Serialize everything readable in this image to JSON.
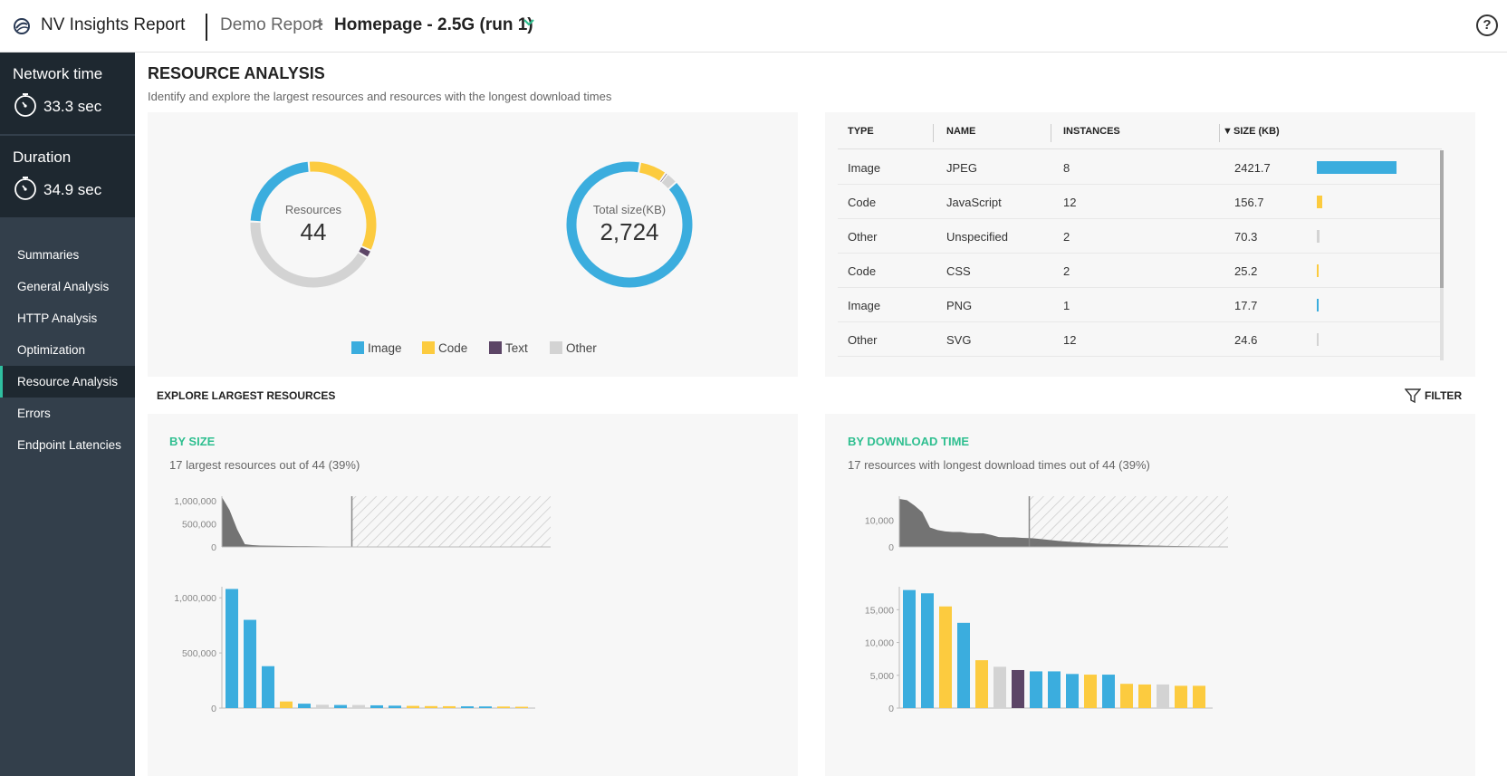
{
  "header": {
    "app_title": "NV Insights Report",
    "breadcrumb_parent": "Demo Report",
    "breadcrumb_separator": ">",
    "breadcrumb_current": "Homepage - 2.5G (run 1)",
    "help_label": "?"
  },
  "sidebar": {
    "network_time": {
      "label": "Network time",
      "value": "33.3 sec"
    },
    "duration": {
      "label": "Duration",
      "value": "34.9 sec"
    },
    "items": [
      {
        "label": "Summaries"
      },
      {
        "label": "General Analysis"
      },
      {
        "label": "HTTP Analysis"
      },
      {
        "label": "Optimization"
      },
      {
        "label": "Resource Analysis"
      },
      {
        "label": "Errors"
      },
      {
        "label": "Endpoint Latencies"
      }
    ],
    "active_item": "Resource Analysis"
  },
  "main": {
    "title": "RESOURCE ANALYSIS",
    "subtitle": "Identify and explore the largest resources and resources with the longest download times"
  },
  "colors": {
    "image": "#3badde",
    "code": "#fccb3f",
    "text": "#5c4566",
    "other": "#d3d3d3",
    "accent": "#2fbf90"
  },
  "donuts": {
    "resources": {
      "label": "Resources",
      "value": "44",
      "segments": [
        {
          "category": "Image",
          "fraction": 0.23
        },
        {
          "category": "Code",
          "fraction": 0.33
        },
        {
          "category": "Text",
          "fraction": 0.02
        },
        {
          "category": "Other",
          "fraction": 0.42
        }
      ]
    },
    "total_size": {
      "label": "Total size(KB)",
      "value": "2,724",
      "segments": [
        {
          "category": "Image",
          "fraction": 0.895
        },
        {
          "category": "Code",
          "fraction": 0.07
        },
        {
          "category": "Text",
          "fraction": 0.005
        },
        {
          "category": "Other",
          "fraction": 0.03
        }
      ]
    },
    "legend": [
      {
        "label": "Image",
        "color": "#3badde"
      },
      {
        "label": "Code",
        "color": "#fccb3f"
      },
      {
        "label": "Text",
        "color": "#5c4566"
      },
      {
        "label": "Other",
        "color": "#d3d3d3"
      }
    ]
  },
  "table": {
    "columns": [
      "TYPE",
      "NAME",
      "INSTANCES",
      "SIZE (KB)"
    ],
    "sort_indicator": "▼",
    "rows": [
      {
        "type": "Image",
        "name": "JPEG",
        "instances": "8",
        "size": "2421.7",
        "color": "#3badde"
      },
      {
        "type": "Code",
        "name": "JavaScript",
        "instances": "12",
        "size": "156.7",
        "color": "#fccb3f"
      },
      {
        "type": "Other",
        "name": "Unspecified",
        "instances": "2",
        "size": "70.3",
        "color": "#d3d3d3"
      },
      {
        "type": "Code",
        "name": "CSS",
        "instances": "2",
        "size": "25.2",
        "color": "#fccb3f"
      },
      {
        "type": "Image",
        "name": "PNG",
        "instances": "1",
        "size": "17.7",
        "color": "#3badde"
      },
      {
        "type": "Other",
        "name": "SVG",
        "instances": "12",
        "size": "24.6",
        "color": "#d3d3d3"
      }
    ]
  },
  "explore": {
    "title": "EXPLORE LARGEST RESOURCES",
    "filter_label": "FILTER"
  },
  "by_size": {
    "title": "BY SIZE",
    "subtitle": "17 largest resources out of 44 (39%)"
  },
  "by_download": {
    "title": "BY DOWNLOAD TIME",
    "subtitle": "17 resources with longest download times out of 44 (39%)"
  },
  "chart_data": [
    {
      "type": "area",
      "x": [
        1,
        2,
        3,
        4,
        5,
        6,
        7,
        8,
        9,
        10,
        11,
        12,
        13,
        14,
        15,
        16,
        17,
        18,
        19,
        20,
        21,
        22,
        23,
        24,
        25,
        26,
        27,
        28,
        29,
        30,
        31,
        32,
        33,
        34,
        35,
        36,
        37,
        38,
        39,
        40,
        41,
        42,
        43,
        44
      ],
      "y": [
        1080000,
        800000,
        380000,
        60000,
        40000,
        30000,
        28000,
        25000,
        22000,
        20000,
        18000,
        16000,
        14000,
        12000,
        11000,
        10000,
        9000,
        8000,
        7000,
        6000,
        5000,
        4500,
        4000,
        3500,
        3000,
        2500,
        2000,
        1800,
        1600,
        1400,
        1200,
        1000,
        900,
        800,
        700,
        600,
        500,
        400,
        300,
        200,
        150,
        100,
        50,
        20
      ],
      "yticks": [
        "1,000,000",
        "500,000",
        "0"
      ],
      "ylim": [
        0,
        1100000
      ],
      "selection_end_index": 17
    },
    {
      "type": "bar",
      "values": [
        1080000,
        800000,
        380000,
        60000,
        40000,
        30000,
        28000,
        28000,
        25000,
        22000,
        20000,
        18000,
        17000,
        16000,
        15000,
        14000,
        12000
      ],
      "colors": [
        "#3badde",
        "#3badde",
        "#3badde",
        "#fccb3f",
        "#3badde",
        "#d3d3d3",
        "#3badde",
        "#d3d3d3",
        "#3badde",
        "#3badde",
        "#fccb3f",
        "#fccb3f",
        "#fccb3f",
        "#3badde",
        "#3badde",
        "#fccb3f",
        "#fccb3f"
      ],
      "yticks": [
        "1,000,000",
        "500,000",
        "0"
      ],
      "ylim": [
        0,
        1100000
      ]
    },
    {
      "type": "area",
      "x": [
        1,
        2,
        3,
        4,
        5,
        6,
        7,
        8,
        9,
        10,
        11,
        12,
        13,
        14,
        15,
        16,
        17,
        18,
        19,
        20,
        21,
        22,
        23,
        24,
        25,
        26,
        27,
        28,
        29,
        30,
        31,
        32,
        33,
        34,
        35,
        36,
        37,
        38,
        39,
        40,
        41,
        42,
        43,
        44
      ],
      "y": [
        18000,
        17500,
        15500,
        13000,
        7300,
        6300,
        5800,
        5600,
        5600,
        5200,
        5100,
        5100,
        4500,
        3700,
        3600,
        3600,
        3400,
        3300,
        3100,
        2800,
        2500,
        2200,
        2000,
        1800,
        1600,
        1400,
        1200,
        1100,
        1000,
        900,
        800,
        700,
        600,
        500,
        450,
        400,
        350,
        300,
        250,
        200,
        150,
        100,
        50,
        20
      ],
      "yticks": [
        "10,000",
        "0"
      ],
      "ylim": [
        0,
        19000
      ],
      "selection_end_index": 17
    },
    {
      "type": "bar",
      "values": [
        18000,
        17500,
        15500,
        13000,
        7300,
        6300,
        5800,
        5600,
        5600,
        5200,
        5100,
        5100,
        3700,
        3600,
        3600,
        3400,
        3400
      ],
      "colors": [
        "#3badde",
        "#3badde",
        "#fccb3f",
        "#3badde",
        "#fccb3f",
        "#d3d3d3",
        "#5c4566",
        "#3badde",
        "#3badde",
        "#3badde",
        "#fccb3f",
        "#3badde",
        "#fccb3f",
        "#fccb3f",
        "#d3d3d3",
        "#fccb3f",
        "#fccb3f"
      ],
      "yticks": [
        "15,000",
        "10,000",
        "5,000",
        "0"
      ],
      "ylim": [
        0,
        18500
      ]
    }
  ]
}
